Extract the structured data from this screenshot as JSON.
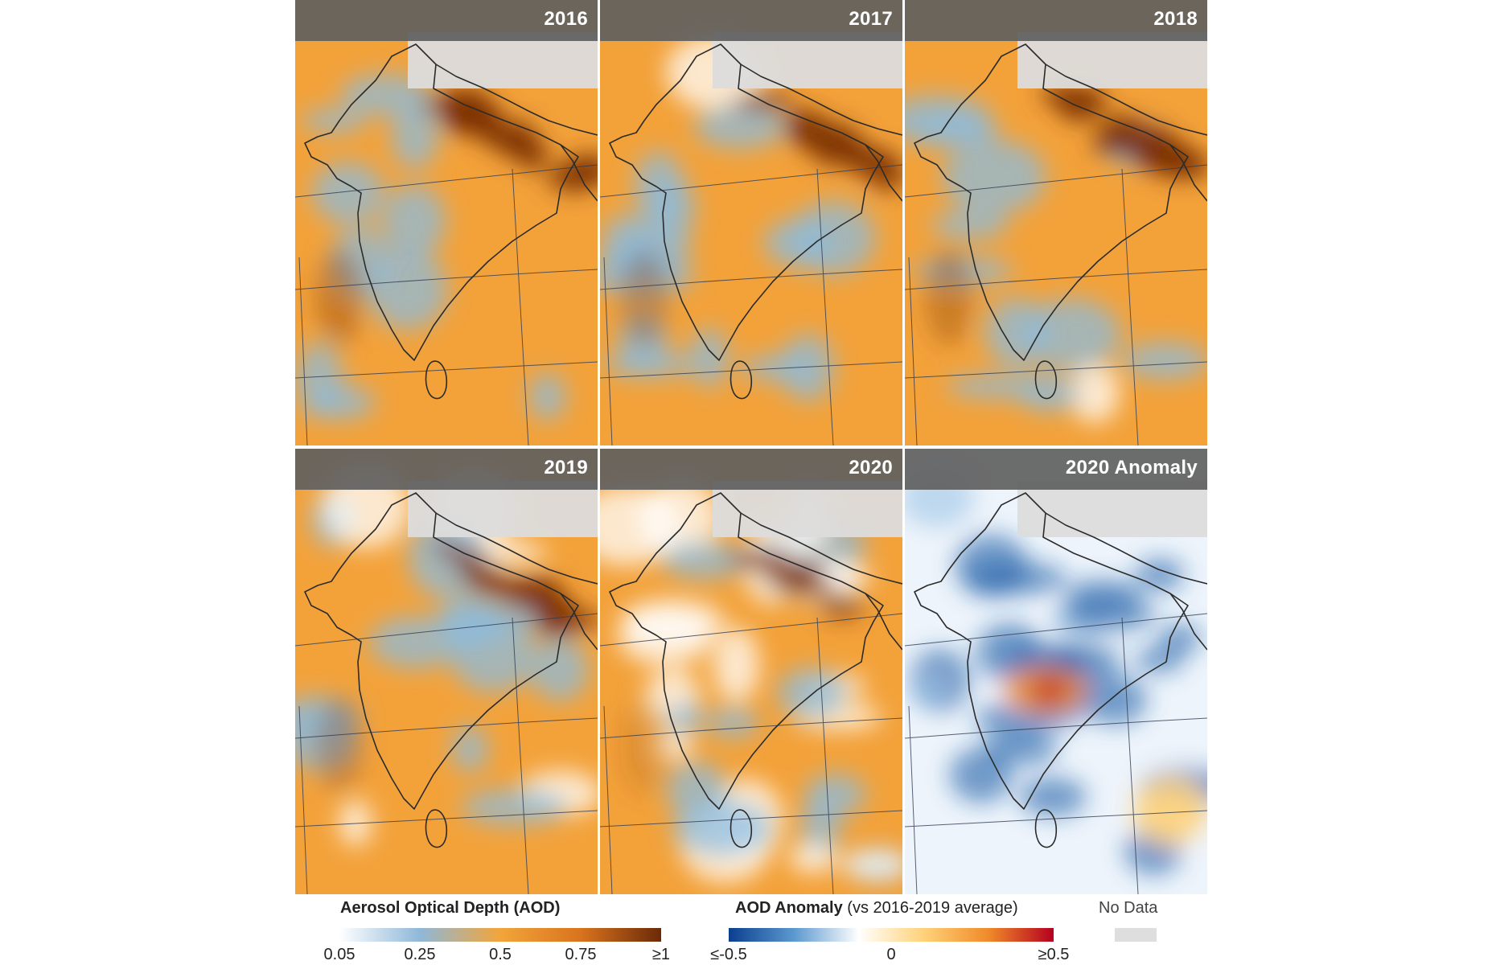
{
  "panels": [
    {
      "title": "2016",
      "style": "aod",
      "intensity": 1.0
    },
    {
      "title": "2017",
      "style": "aod",
      "intensity": 0.85
    },
    {
      "title": "2018",
      "style": "aod",
      "intensity": 0.95
    },
    {
      "title": "2019",
      "style": "aod",
      "intensity": 0.8
    },
    {
      "title": "2020",
      "style": "aod",
      "intensity": 0.45
    },
    {
      "title": "2020 Anomaly",
      "style": "anomaly",
      "intensity": 0.7
    }
  ],
  "legends": {
    "aod": {
      "title": "Aerosol Optical Depth (AOD)",
      "ticks": [
        "0.05",
        "0.25",
        "0.5",
        "0.75",
        "≥1"
      ],
      "colors": [
        "#ffffff",
        "#8fb8d9",
        "#f2a53a",
        "#d9731e",
        "#6b2a08"
      ]
    },
    "anomaly": {
      "title_bold": "AOD Anomaly",
      "title_rest": " (vs 2016-2019 average)",
      "ticks": [
        "≤-0.5",
        "0",
        "≥0.5"
      ],
      "colors": [
        "#0b3f8f",
        "#5b98cf",
        "#ffffff",
        "#ffd27a",
        "#f08a2a",
        "#b5001f"
      ]
    },
    "nodata": {
      "label": "No Data",
      "color": "#dedede"
    }
  },
  "colors": {
    "aod_orange": "#f3a23a",
    "aod_blue": "#8dbbdc",
    "aod_dark": "#7a3006",
    "anomaly_blue": "#1f5fa8",
    "anomaly_red": "#c4161c",
    "coastline": "#2b2b2b",
    "gridline": "#2f3b52"
  }
}
